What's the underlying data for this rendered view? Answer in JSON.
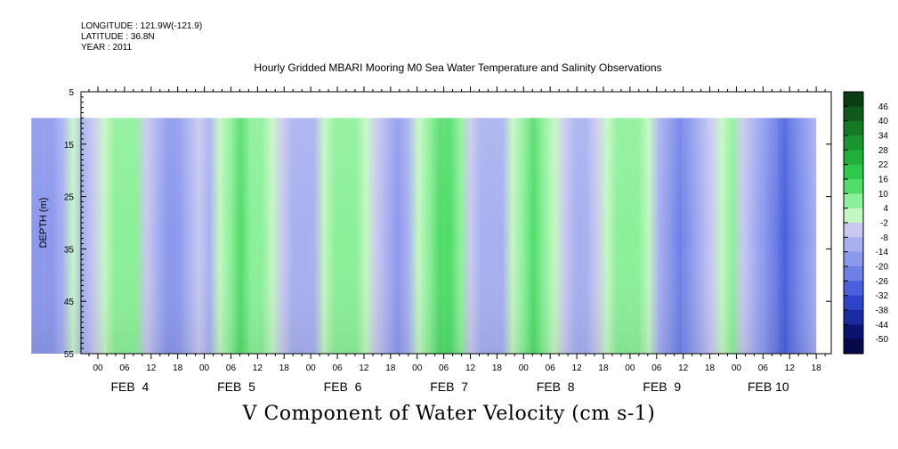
{
  "header": {
    "longitude": "LONGITUDE : 121.9W(-121.9)",
    "latitude": "LATITUDE : 36.8N",
    "year": "YEAR : 2011",
    "title": "Hourly Gridded MBARI Mooring M0 Sea Water Temperature and Salinity Observations"
  },
  "footer": {
    "caption": "V Component of Water Velocity (cm s-1)"
  },
  "chart_data": {
    "type": "heatmap",
    "title": "Hourly Gridded MBARI Mooring M0 Sea Water Temperature and Salinity Observations",
    "xlabel": "",
    "ylabel": "DEPTH (m)",
    "ylim": [
      55,
      5
    ],
    "y_ticks": [
      "5",
      "15",
      "25",
      "35",
      "45",
      "55"
    ],
    "x_days": [
      "FEB  4",
      "FEB  5",
      "FEB  6",
      "FEB  7",
      "FEB  8",
      "FEB  9",
      "FEB 10"
    ],
    "x_hour_labels": [
      "00",
      "06",
      "12",
      "18"
    ],
    "data_depth_range_m": [
      10,
      55
    ],
    "colorbar": {
      "labels": [
        "46",
        "40",
        "34",
        "28",
        "22",
        "16",
        "10",
        "4",
        "-2",
        "-8",
        "-14",
        "-20",
        "-26",
        "-32",
        "-38",
        "-44",
        "-50"
      ],
      "colors_top_to_bottom": [
        "#0a3d12",
        "#0f5a1a",
        "#157a24",
        "#1a962e",
        "#20b03a",
        "#2ec84c",
        "#52dc6a",
        "#8cf09a",
        "#c4f7c2",
        "#c8c8f0",
        "#a8b0f0",
        "#8c98ec",
        "#6e80e6",
        "#4a60dc",
        "#2e44c8",
        "#1a2aa0",
        "#0c1270",
        "#070a48"
      ]
    },
    "v_profile_pattern_cm_s": [
      -12,
      -16,
      -14,
      -6,
      0,
      -10,
      -4,
      2,
      8,
      10,
      6,
      -2,
      -10,
      -14,
      -12,
      -6,
      -2,
      -6,
      2,
      8,
      12,
      10,
      6,
      0,
      -4,
      -8,
      -10,
      -8,
      0,
      6,
      10,
      8,
      4,
      -2,
      -8,
      -12,
      -6,
      2,
      10,
      14,
      12,
      6,
      -4,
      -8,
      -10,
      -6,
      4,
      10,
      14,
      10,
      4,
      -2,
      -6,
      -10,
      -4,
      2,
      6,
      10,
      8,
      2,
      -6,
      -14,
      -18,
      -14,
      -8,
      -4,
      2,
      6,
      -4,
      -10,
      -14,
      -20,
      -26,
      -20,
      -12,
      -8
    ]
  }
}
